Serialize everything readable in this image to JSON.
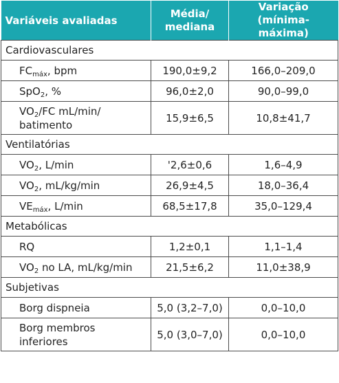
{
  "header": {
    "col1": "Variáveis avaliadas",
    "col2_line1": "Média/",
    "col2_line2": "mediana",
    "col3_line1": "Variação",
    "col3_line2": "(mínima-máxima)"
  },
  "sections": [
    {
      "title": "Cardiovasculares",
      "rows": [
        {
          "label_main": "FC",
          "label_sub": "máx",
          "label_rest": ", bpm",
          "mean": "190,0±9,2",
          "range": "166,0–209,0"
        },
        {
          "label_main": "SpO",
          "label_sub": "2",
          "label_rest": ", %",
          "mean": "96,0±2,0",
          "range": "90,0–99,0"
        },
        {
          "label_main": "VO",
          "label_sub": "2",
          "label_rest": "/FC mL/min/",
          "label_line2": "batimento",
          "mean": "15,9±6,5",
          "range": "10,8±41,7"
        }
      ]
    },
    {
      "title": "Ventilatórias",
      "rows": [
        {
          "label_main": "VO",
          "label_sub": "2",
          "label_rest": ", L/min",
          "mean": "'2,6±0,6",
          "range": "1,6–4,9"
        },
        {
          "label_main": "VO",
          "label_sub": "2",
          "label_rest": ", mL/kg/min",
          "mean": "26,9±4,5",
          "range": "18,0–36,4"
        },
        {
          "label_main": "VE",
          "label_sub": "máx",
          "label_rest": ", L/min",
          "mean": "68,5±17,8",
          "range": "35,0–129,4"
        }
      ]
    },
    {
      "title": "Metabólicas",
      "rows": [
        {
          "label_main": "RQ",
          "mean": "1,2±0,1",
          "range": "1,1–1,4"
        },
        {
          "label_main": "VO",
          "label_sub": "2",
          "label_rest": " no LA, mL/kg/min",
          "mean": "21,5±6,2",
          "range": "11,0±38,9"
        }
      ]
    },
    {
      "title": "Subjetivas",
      "rows": [
        {
          "label_main": "Borg dispneia",
          "mean": "5,0 (3,2–7,0)",
          "range": "0,0–10,0"
        },
        {
          "label_main": "Borg membros",
          "label_line2": "inferiores",
          "mean": "5,0 (3,0–7,0)",
          "range": "0,0–10,0"
        }
      ]
    }
  ]
}
